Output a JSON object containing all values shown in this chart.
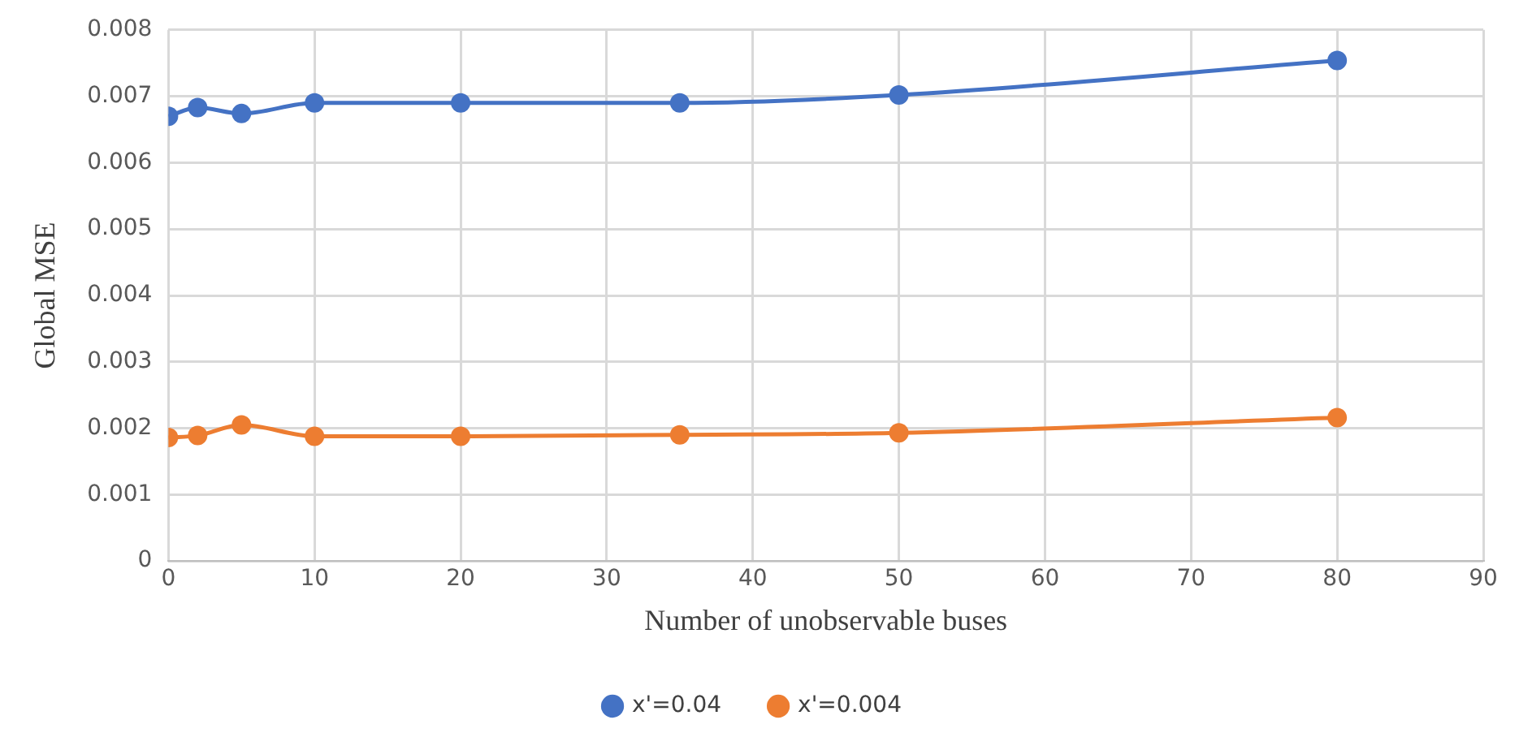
{
  "chart_data": {
    "type": "line",
    "xlabel": "Number of unobservable buses",
    "ylabel": "Global MSE",
    "x": [
      0,
      2,
      5,
      10,
      20,
      35,
      50,
      80
    ],
    "series": [
      {
        "name": "x'=0.04",
        "color": "#4472c4",
        "values": [
          0.0067,
          0.00683,
          0.00674,
          0.0069,
          0.0069,
          0.0069,
          0.00702,
          0.00754
        ]
      },
      {
        "name": "x'=0.004",
        "color": "#ed7d31",
        "values": [
          0.00186,
          0.00189,
          0.00205,
          0.00188,
          0.00188,
          0.0019,
          0.00193,
          0.00216
        ]
      }
    ],
    "xlim": [
      0,
      90
    ],
    "xticks": [
      0,
      10,
      20,
      30,
      40,
      50,
      60,
      70,
      80,
      90
    ],
    "ylim": [
      0,
      0.008
    ],
    "yticks": [
      0,
      0.001,
      0.002,
      0.003,
      0.004,
      0.005,
      0.006,
      0.007,
      0.008
    ],
    "grid": true,
    "legend": "bottom",
    "marker": "circle",
    "line_style": "solid"
  }
}
